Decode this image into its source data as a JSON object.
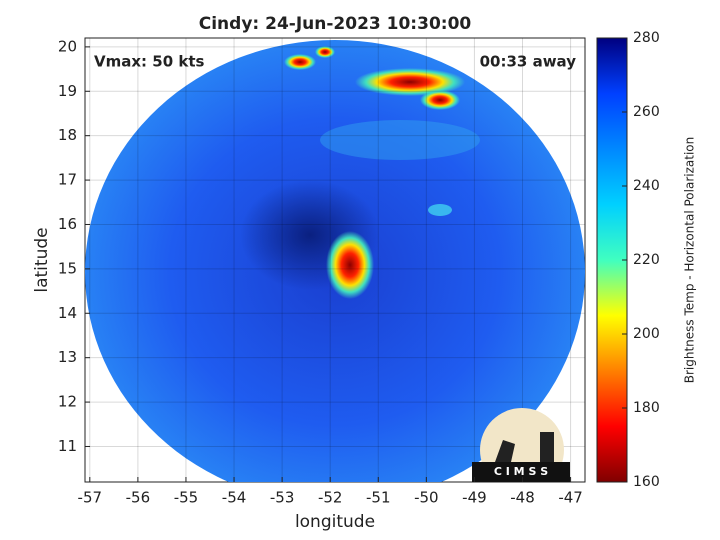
{
  "title": "Cindy: 24-Jun-2023 10:30:00",
  "annotations": {
    "vmax": "Vmax: 50 kts",
    "away": "00:33 away"
  },
  "axes": {
    "xlabel": "longitude",
    "ylabel": "latitude",
    "xlim": [
      -57.1,
      -46.7
    ],
    "ylim": [
      10.2,
      20.2
    ],
    "xticks": [
      -57,
      -56,
      -55,
      -54,
      -53,
      -52,
      -51,
      -50,
      -49,
      -48,
      -47
    ],
    "yticks": [
      11,
      12,
      13,
      14,
      15,
      16,
      17,
      18,
      19,
      20
    ],
    "grid": true
  },
  "colorbar": {
    "label": "Brightness Temp - Horizontal Polarization",
    "lim": [
      160,
      280
    ],
    "ticks": [
      160,
      180,
      200,
      220,
      240,
      260,
      280
    ]
  },
  "logo": "C I M S S"
}
